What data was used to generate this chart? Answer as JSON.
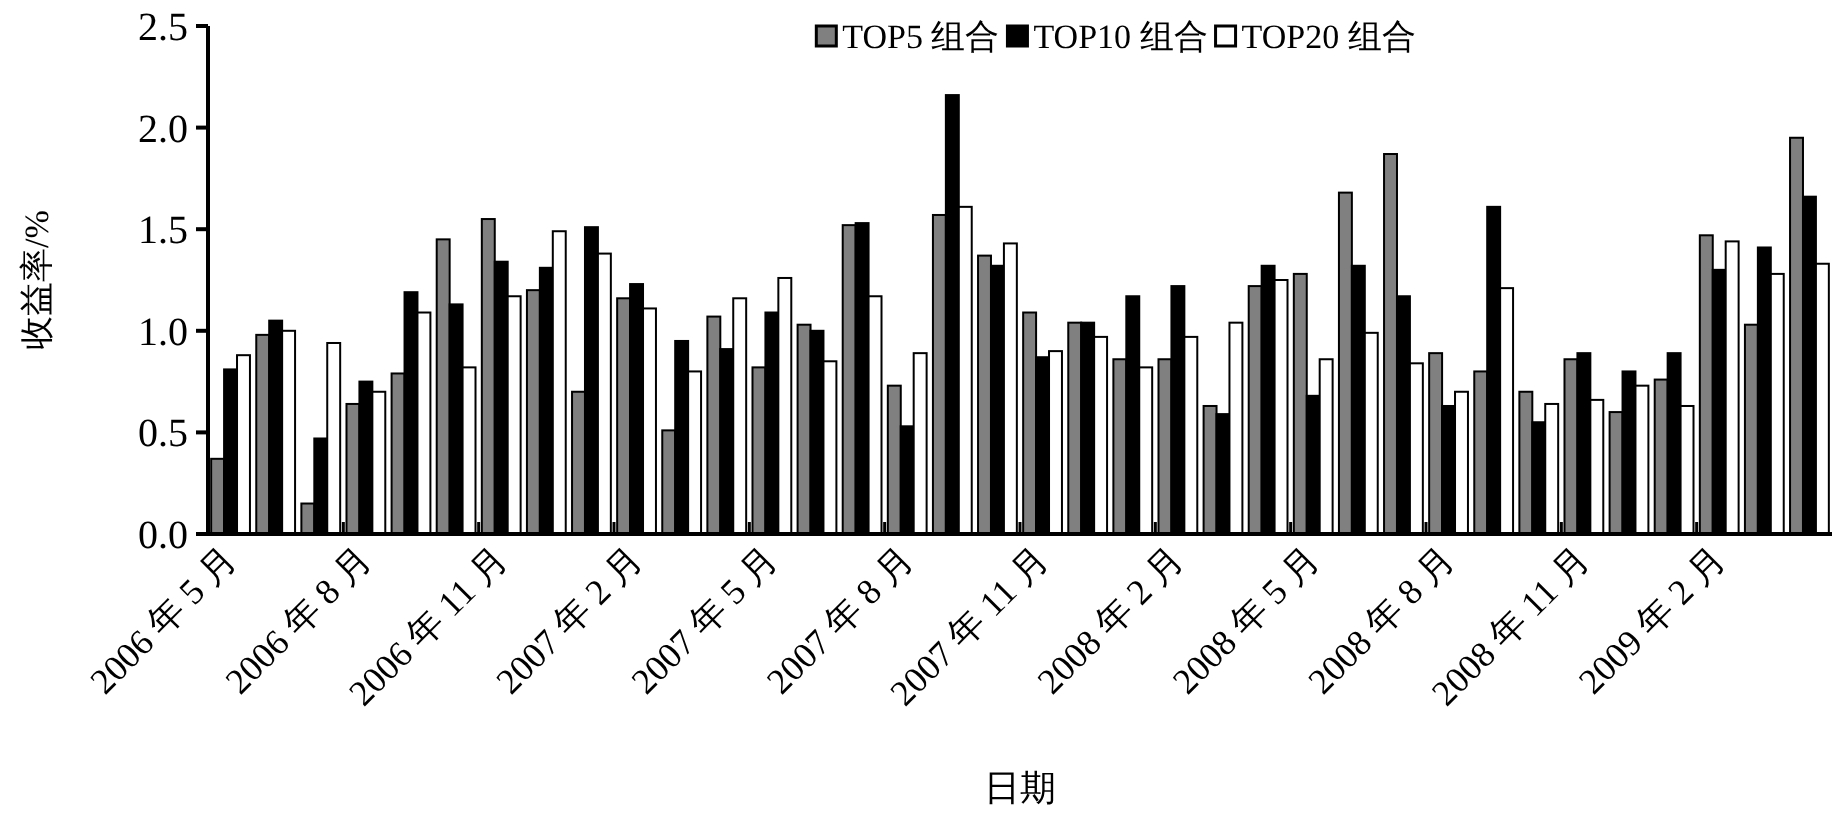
{
  "chart_data": {
    "type": "bar",
    "xlabel": "日期",
    "ylabel": "收益率/%",
    "legend": "top",
    "categories": [
      "2006 年 5 月",
      null,
      null,
      "2006 年 8 月",
      null,
      null,
      "2006 年 11 月",
      null,
      null,
      "2007 年 2 月",
      null,
      null,
      "2007 年 5 月",
      null,
      null,
      "2007 年 8 月",
      null,
      null,
      "2007 年 11 月",
      null,
      null,
      "2008 年 2 月",
      null,
      null,
      "2008 年 5 月",
      null,
      null,
      "2008 年 8 月",
      null,
      null,
      "2008 年 11 月",
      null,
      null,
      "2009 年 2 月",
      null,
      null
    ],
    "ylim": [
      0,
      2.5
    ],
    "yticks": [
      {
        "value": 0,
        "label": "0.0"
      },
      {
        "value": 0.5,
        "label": "0.5"
      },
      {
        "value": 1,
        "label": "1.0"
      },
      {
        "value": 1.5,
        "label": "1.5"
      },
      {
        "value": 2,
        "label": "2.0"
      },
      {
        "value": 2.5,
        "label": "2.5"
      }
    ],
    "series": [
      {
        "name": "TOP5 组合",
        "color": "#808080",
        "values": [
          0.37,
          0.98,
          0.15,
          0.64,
          0.79,
          1.45,
          1.55,
          1.2,
          0.7,
          1.16,
          0.51,
          1.07,
          0.82,
          1.03,
          1.52,
          0.73,
          1.57,
          1.37,
          1.09,
          1.04,
          0.86,
          0.86,
          0.63,
          1.22,
          1.28,
          1.68,
          1.87,
          0.89,
          0.8,
          0.7,
          0.86,
          0.6,
          0.76,
          1.47,
          1.03,
          1.95
        ]
      },
      {
        "name": "TOP10 组合",
        "color": "#000000",
        "values": [
          0.81,
          1.05,
          0.47,
          0.75,
          1.19,
          1.13,
          1.34,
          1.31,
          1.51,
          1.23,
          0.95,
          0.91,
          1.09,
          1.0,
          1.53,
          0.53,
          2.16,
          1.32,
          0.87,
          1.04,
          1.17,
          1.22,
          0.59,
          1.32,
          0.68,
          1.32,
          1.17,
          0.63,
          1.61,
          0.55,
          0.89,
          0.8,
          0.89,
          1.3,
          1.41,
          1.66
        ]
      },
      {
        "name": "TOP20 组合",
        "color": "#ffffff",
        "values": [
          0.88,
          1.0,
          0.94,
          0.7,
          1.09,
          0.82,
          1.17,
          1.49,
          1.38,
          1.11,
          0.8,
          1.16,
          1.26,
          0.85,
          1.17,
          0.89,
          1.61,
          1.43,
          0.9,
          0.97,
          0.82,
          0.97,
          1.04,
          1.25,
          0.86,
          0.99,
          0.84,
          0.7,
          1.21,
          0.64,
          0.66,
          0.73,
          0.63,
          1.44,
          1.28,
          1.33
        ]
      }
    ]
  }
}
